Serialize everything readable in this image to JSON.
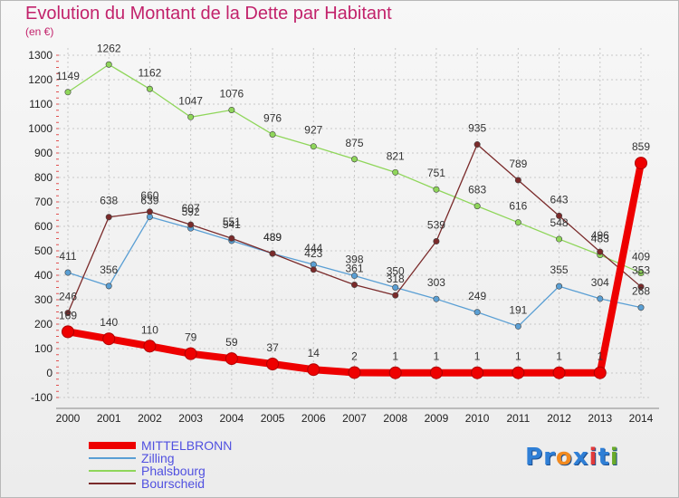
{
  "header": {
    "title": "Evolution du Montant de la Dette par Habitant",
    "unit": "(en €)"
  },
  "logo": {
    "text": "Proxiti",
    "letters": [
      "P",
      "r",
      "o",
      "x",
      "i",
      "t",
      "i"
    ],
    "colors": [
      "#2f7fd6",
      "#2f7fd6",
      "#f28a1f",
      "#2f7fd6",
      "#e23a3a",
      "#2f7fd6",
      "#6aaa2a"
    ]
  },
  "chart_data": {
    "type": "line",
    "title": "Evolution du Montant de la Dette par Habitant",
    "ylabel": "(en €)",
    "xlabel": "",
    "x": [
      "2000",
      "2001",
      "2002",
      "2003",
      "2004",
      "2005",
      "2006",
      "2007",
      "2008",
      "2009",
      "2010",
      "2011",
      "2012",
      "2013",
      "2014"
    ],
    "ylim": [
      -100,
      1300
    ],
    "yticks": [
      -100,
      0,
      100,
      200,
      300,
      400,
      500,
      600,
      700,
      800,
      900,
      1000,
      1100,
      1200,
      1300
    ],
    "grid": true,
    "legend_position": "bottom-left",
    "series": [
      {
        "name": "MITTELBRONN",
        "color": "#ee0000",
        "values": [
          169,
          140,
          110,
          79,
          59,
          37,
          14,
          2,
          1,
          1,
          1,
          1,
          1,
          1,
          859
        ]
      },
      {
        "name": "Zilling",
        "color": "#5a9fd4",
        "values": [
          411,
          356,
          639,
          592,
          541,
          489,
          444,
          398,
          350,
          303,
          249,
          191,
          355,
          304,
          268
        ]
      },
      {
        "name": "Phalsbourg",
        "color": "#8fd65a",
        "values": [
          1149,
          1262,
          1162,
          1047,
          1076,
          976,
          927,
          875,
          821,
          751,
          683,
          616,
          548,
          483,
          409
        ]
      },
      {
        "name": "Bourscheid",
        "color": "#7a2a2a",
        "values": [
          246,
          638,
          660,
          607,
          551,
          489,
          423,
          361,
          318,
          539,
          935,
          789,
          643,
          496,
          353
        ]
      }
    ]
  }
}
